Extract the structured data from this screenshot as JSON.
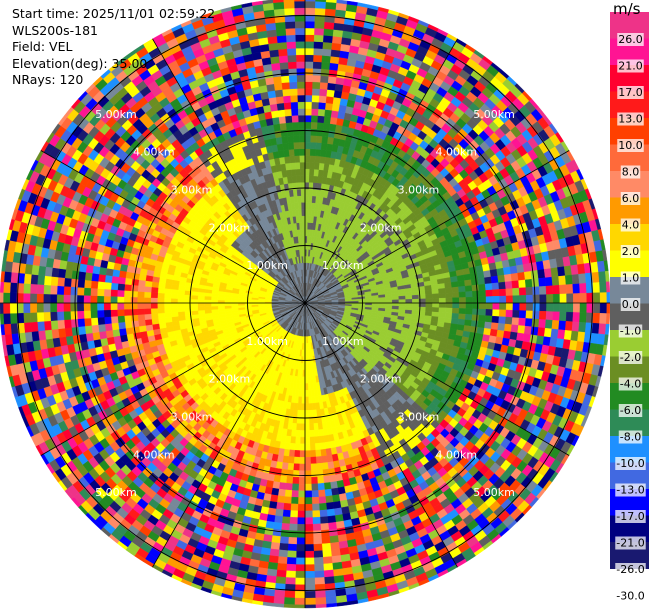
{
  "header": {
    "start_time": "Start time: 2025/11/01 02:59:22",
    "instrument": "WLS200s-181",
    "field": "Field: VEL",
    "elevation": "Elevation(deg): 35.00",
    "nrays": "NRays: 120"
  },
  "colorbar": {
    "unit": "m/s",
    "ticks": [
      "26.0",
      "21.0",
      "17.0",
      "13.0",
      "10.0",
      "8.0",
      "6.0",
      "4.0",
      "2.0",
      "1.0",
      "0.0",
      "-1.0",
      "-2.0",
      "-4.0",
      "-6.0",
      "-8.0",
      "-10.0",
      "-13.0",
      "-17.0",
      "-21.0",
      "-26.0",
      "-30.0"
    ],
    "colors": [
      "#ee3388",
      "#ff1493",
      "#ff0030",
      "#ff1a1a",
      "#ff4000",
      "#ff6a3a",
      "#ff8a66",
      "#ff9a00",
      "#ffd700",
      "#ffff00",
      "#778899",
      "#5f5f5f",
      "#9acd32",
      "#6b8e23",
      "#228b22",
      "#2e8b57",
      "#1e90ff",
      "#4169e1",
      "#0000ff",
      "#000080",
      "#191970"
    ]
  },
  "chart_data": {
    "type": "heatmap",
    "projection": "polar (PPI)",
    "field": "VEL",
    "units": "m/s",
    "nrays": 120,
    "elevation_deg": 35.0,
    "range_ring_labels": [
      "1.00km",
      "2.00km",
      "3.00km",
      "4.00km",
      "5.00km"
    ],
    "radial_profile": [
      {
        "range_km": [
          0,
          1.5
        ],
        "zone": "mixed near-zero: approach side -1.0 to 0.0, receding side 0.0 to 1.0"
      },
      {
        "range_km": [
          1.5,
          2.5
        ],
        "zone": "receding side 1.0 to 4.0, approach side -2.0 to -6.0"
      },
      {
        "range_km": [
          2.5,
          3.2
        ],
        "zone": "receding side 4.0 to 10.0, approach side -6.0 to -10.0"
      },
      {
        "range_km": [
          3.2,
          5.5
        ],
        "zone": "noise / random values across full scale"
      }
    ]
  }
}
